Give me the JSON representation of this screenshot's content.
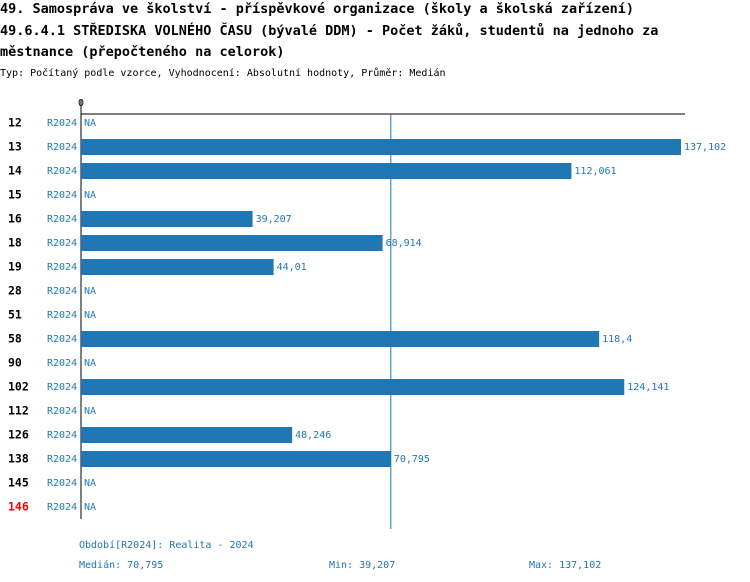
{
  "chart_data": {
    "type": "bar",
    "orientation": "horizontal",
    "title": [
      "49. Samospráva ve školství - příspěvkové organizace (školy a školská zařízení)",
      "49.6.4.1 STŘEDISKA VOLNÉHO ČASU (bývalé DDM) - Počet žáků, studentů na jednoho za",
      "městnance (přepočteného na celorok)"
    ],
    "subtitle": "Typ: Počítaný podle vzorce, Vyhodnocení: Absolutní hodnoty, Průměr: Medián",
    "categories": [
      "12",
      "13",
      "14",
      "15",
      "16",
      "18",
      "19",
      "28",
      "51",
      "58",
      "90",
      "102",
      "112",
      "126",
      "138",
      "145",
      "146"
    ],
    "category_colors": [
      "#000000",
      "#000000",
      "#000000",
      "#000000",
      "#000000",
      "#000000",
      "#000000",
      "#000000",
      "#000000",
      "#000000",
      "#000000",
      "#000000",
      "#000000",
      "#000000",
      "#000000",
      "#000000",
      "#ff0000"
    ],
    "series": [
      {
        "name": "R2024",
        "color": "#1f77b4",
        "values": [
          null,
          137.102,
          112.061,
          null,
          39.207,
          68.914,
          44.01,
          null,
          null,
          118.4,
          null,
          124.141,
          null,
          48.246,
          70.795,
          null,
          null
        ],
        "value_labels": [
          "NA",
          "137,102",
          "112,061",
          "NA",
          "39,207",
          "68,914",
          "44,01",
          "NA",
          "NA",
          "118,4",
          "NA",
          "124,141",
          "NA",
          "48,246",
          "70,795",
          "NA",
          "NA"
        ]
      }
    ],
    "xlim": [
      0,
      137.102
    ],
    "xticks": [
      0
    ],
    "period_note": "Období[R2024]: Realita - 2024",
    "median": {
      "value": 70.795,
      "label": "Medián: 70,795"
    },
    "min": {
      "value": 39.207,
      "label": "Min: 39,207"
    },
    "max": {
      "value": 137.102,
      "label": "Max: 137,102"
    }
  }
}
